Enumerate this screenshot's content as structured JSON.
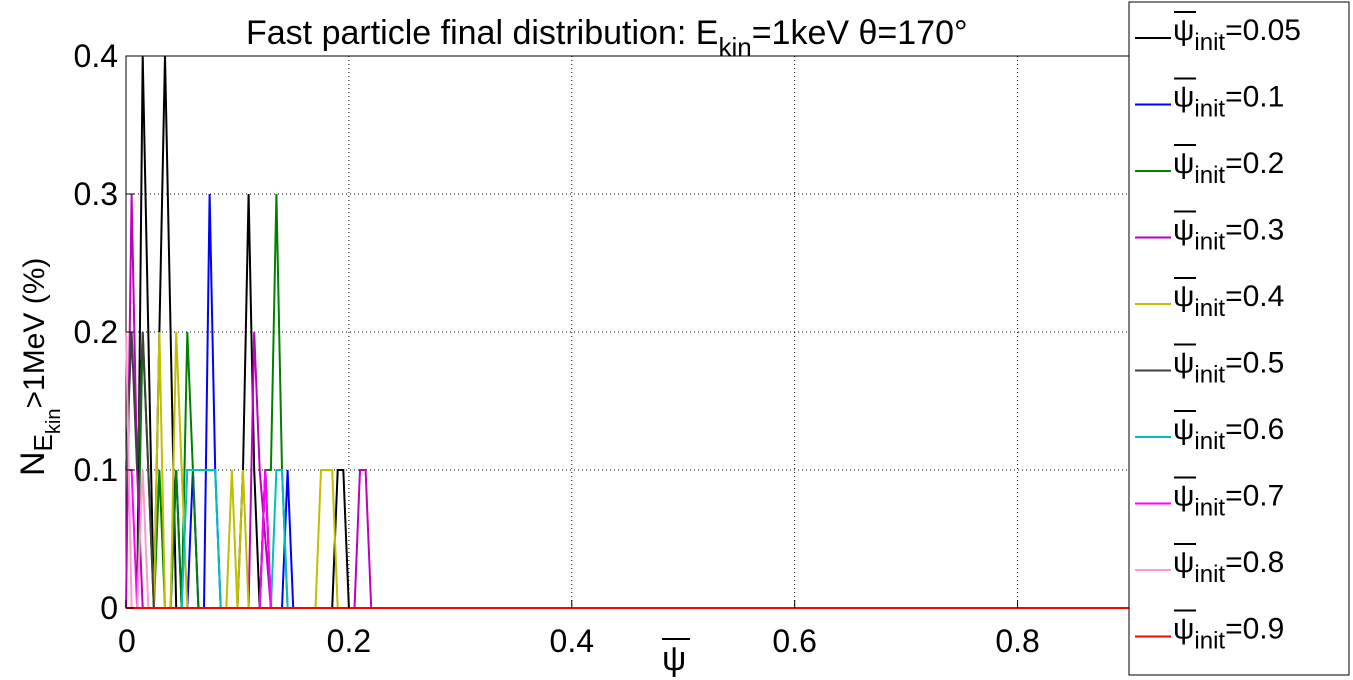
{
  "chart_data": {
    "type": "line",
    "title": {
      "main": "Fast particle final distribution: E",
      "sub": "kin",
      "rest": "=1keV θ=170°"
    },
    "xlabel": "ψ",
    "ylabel": {
      "main": "N",
      "sub": "E",
      "subsub": "kin",
      "rest": ">1MeV (%)"
    },
    "xlim": [
      0,
      0.9
    ],
    "ylim": [
      0,
      0.4
    ],
    "xticks": [
      "0",
      "0.2",
      "0.4",
      "0.6",
      "0.8"
    ],
    "yticks": [
      "0",
      "0.1",
      "0.2",
      "0.3",
      "0.4"
    ],
    "grid": true,
    "legend_position": "right",
    "series": [
      {
        "name": "0.05",
        "color": "#000000",
        "x": [
          0.01,
          0.015,
          0.02,
          0.025,
          0.03,
          0.035,
          0.04,
          0.045,
          0.05,
          0.09,
          0.1,
          0.105,
          0.11,
          0.115,
          0.12,
          0.125,
          0.13,
          0.185,
          0.19,
          0.195,
          0.2,
          0.205,
          0.9
        ],
        "y": [
          0,
          0.4,
          0.2,
          0,
          0.2,
          0.4,
          0.2,
          0,
          0,
          0,
          0,
          0.1,
          0.3,
          0.1,
          0,
          0,
          0,
          0,
          0.1,
          0.1,
          0,
          0,
          0
        ]
      },
      {
        "name": "0.1",
        "color": "#0000ff",
        "x": [
          0.04,
          0.045,
          0.05,
          0.055,
          0.06,
          0.065,
          0.07,
          0.075,
          0.08,
          0.085,
          0.09,
          0.095,
          0.1,
          0.12,
          0.125,
          0.13,
          0.14,
          0.145,
          0.15,
          0.155,
          0.16,
          0.9
        ],
        "y": [
          0,
          0.1,
          0,
          0,
          0.1,
          0,
          0,
          0.3,
          0.1,
          0,
          0,
          0,
          0,
          0,
          0.1,
          0,
          0,
          0.1,
          0,
          0,
          0,
          0
        ]
      },
      {
        "name": "0.2",
        "color": "#008000",
        "x": [
          0.01,
          0.015,
          0.02,
          0.025,
          0.03,
          0.035,
          0.04,
          0.045,
          0.05,
          0.055,
          0.06,
          0.065,
          0.07,
          0.12,
          0.125,
          0.13,
          0.135,
          0.14,
          0.145,
          0.9
        ],
        "y": [
          0,
          0.2,
          0.1,
          0,
          0.1,
          0,
          0,
          0.1,
          0,
          0.2,
          0.1,
          0,
          0,
          0,
          0.1,
          0.1,
          0.3,
          0.1,
          0,
          0
        ]
      },
      {
        "name": "0.3",
        "color": "#bf00bf",
        "x": [
          0,
          0.005,
          0.01,
          0.015,
          0.02,
          0.11,
          0.115,
          0.12,
          0.13,
          0.205,
          0.21,
          0.215,
          0.22,
          0.225,
          0.9
        ],
        "y": [
          0,
          0.3,
          0.1,
          0,
          0,
          0,
          0.2,
          0.1,
          0,
          0,
          0.1,
          0.1,
          0,
          0,
          0
        ]
      },
      {
        "name": "0.4",
        "color": "#bfbf00",
        "x": [
          0.025,
          0.03,
          0.035,
          0.04,
          0.045,
          0.05,
          0.055,
          0.06,
          0.065,
          0.07,
          0.09,
          0.095,
          0.1,
          0.105,
          0.11,
          0.17,
          0.175,
          0.18,
          0.185,
          0.19,
          0.9
        ],
        "y": [
          0,
          0.2,
          0,
          0,
          0.2,
          0.1,
          0,
          0,
          0,
          0,
          0,
          0.1,
          0,
          0.1,
          0,
          0,
          0.1,
          0.1,
          0.1,
          0,
          0
        ]
      },
      {
        "name": "0.5",
        "color": "#404040",
        "x": [
          0,
          0.005,
          0.01,
          0.015,
          0.02,
          0.025,
          0.03,
          0.035,
          0.12,
          0.125,
          0.13,
          0.9
        ],
        "y": [
          0.1,
          0.2,
          0.1,
          0.2,
          0.1,
          0,
          0,
          0,
          0,
          0.1,
          0,
          0
        ]
      },
      {
        "name": "0.6",
        "color": "#00bfbf",
        "x": [
          0.05,
          0.055,
          0.06,
          0.065,
          0.07,
          0.075,
          0.08,
          0.085,
          0.13,
          0.135,
          0.14,
          0.145,
          0.9
        ],
        "y": [
          0,
          0.1,
          0.1,
          0.1,
          0.1,
          0.1,
          0.1,
          0,
          0,
          0.1,
          0.1,
          0,
          0
        ]
      },
      {
        "name": "0.7",
        "color": "#ff00ff",
        "x": [
          0,
          0.005,
          0.01,
          0.015,
          0.12,
          0.125,
          0.13,
          0.9
        ],
        "y": [
          0.1,
          0.1,
          0,
          0,
          0,
          0.1,
          0,
          0
        ]
      },
      {
        "name": "0.8",
        "color": "#ff99cc",
        "x": [
          0,
          0.005,
          0.01,
          0.015,
          0.02,
          0.025,
          0.9
        ],
        "y": [
          0.2,
          0,
          0,
          0.1,
          0,
          0,
          0
        ]
      },
      {
        "name": "0.9",
        "color": "#ff0000",
        "x": [
          0,
          0.9
        ],
        "y": [
          0,
          0
        ]
      }
    ],
    "legend_label": {
      "prefix": "ψ",
      "sub": "init",
      "eq": "="
    }
  }
}
